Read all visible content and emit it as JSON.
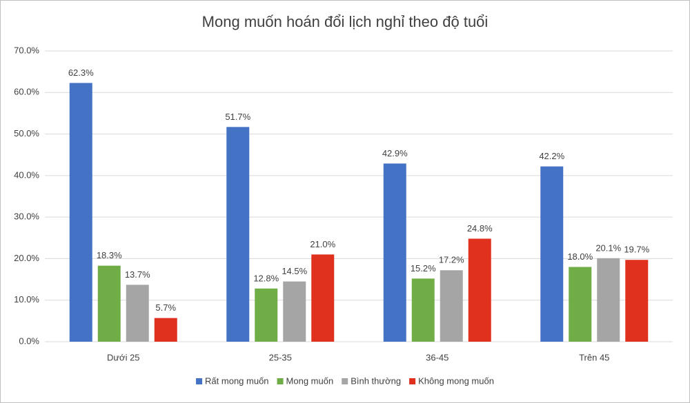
{
  "chart_data": {
    "type": "bar",
    "title": "Mong muốn hoán đổi lịch nghỉ theo độ tuổi",
    "categories": [
      "Dưới 25",
      "25-35",
      "36-45",
      "Trên 45"
    ],
    "series": [
      {
        "name": "Rất mong muốn",
        "color": "#4472c4",
        "values": [
          62.3,
          51.7,
          42.9,
          42.2
        ],
        "value_labels": [
          "62.3%",
          "51.7%",
          "42.9%",
          "42.2%"
        ]
      },
      {
        "name": "Mong muốn",
        "color": "#70ad47",
        "values": [
          18.3,
          12.8,
          15.2,
          18.0
        ],
        "value_labels": [
          "18.3%",
          "12.8%",
          "15.2%",
          "18.0%"
        ]
      },
      {
        "name": "Bình thường",
        "color": "#a5a5a5",
        "values": [
          13.7,
          14.5,
          17.2,
          20.1
        ],
        "value_labels": [
          "13.7%",
          "14.5%",
          "17.2%",
          "20.1%"
        ]
      },
      {
        "name": "Không mong muốn",
        "color": "#e0301e",
        "values": [
          5.7,
          21.0,
          24.8,
          19.7
        ],
        "value_labels": [
          "5.7%",
          "21.0%",
          "24.8%",
          "19.7%"
        ]
      }
    ],
    "ylim": [
      0,
      70
    ],
    "yticks": [
      {
        "value": 0,
        "label": "0.0%"
      },
      {
        "value": 10,
        "label": "10.0%"
      },
      {
        "value": 20,
        "label": "20.0%"
      },
      {
        "value": 30,
        "label": "30.0%"
      },
      {
        "value": 40,
        "label": "40.0%"
      },
      {
        "value": 50,
        "label": "50.0%"
      },
      {
        "value": 60,
        "label": "60.0%"
      },
      {
        "value": 70,
        "label": "70.0%"
      }
    ],
    "grid": true,
    "legend": "bottom"
  }
}
